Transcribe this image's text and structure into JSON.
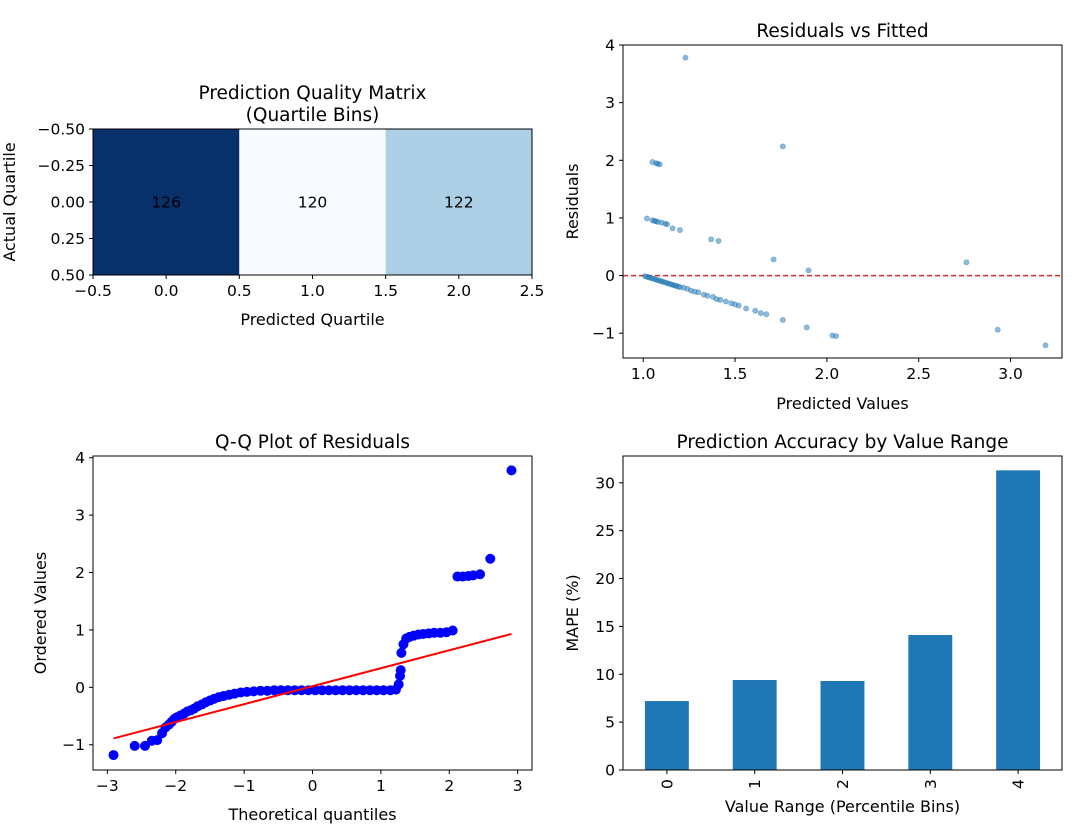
{
  "chart_data": [
    {
      "type": "heatmap",
      "title": "Prediction Quality Matrix\n(Quartile Bins)",
      "xlabel": "Predicted Quartile",
      "ylabel": "Actual Quartile",
      "xlim": [
        -0.5,
        2.5
      ],
      "ylim": [
        -0.5,
        0.5
      ],
      "y_inverted": true,
      "xticks": [
        "−0.5",
        "0.0",
        "0.5",
        "1.0",
        "1.5",
        "2.0",
        "2.5"
      ],
      "yticks": [
        "−0.50",
        "−0.25",
        "0.00",
        "0.25",
        "0.50"
      ],
      "colormap": "Blues",
      "cell_colors": [
        "#08306b",
        "#f7fbff",
        "#abd0e6"
      ],
      "cells": [
        {
          "col": 0,
          "row": 0,
          "value": 126
        },
        {
          "col": 1,
          "row": 0,
          "value": 120
        },
        {
          "col": 2,
          "row": 0,
          "value": 122
        }
      ]
    },
    {
      "type": "scatter",
      "title": "Residuals vs Fitted",
      "xlabel": "Predicted Values",
      "ylabel": "Residuals",
      "xlim": [
        0.89,
        3.28
      ],
      "ylim": [
        -1.43,
        4.0
      ],
      "xticks": [
        "1.0",
        "1.5",
        "2.0",
        "2.5",
        "3.0"
      ],
      "yticks": [
        "−1",
        "0",
        "1",
        "2",
        "3",
        "4"
      ],
      "point_color": "#1f77b4",
      "reference_line": {
        "y": 0,
        "color": "#d62728",
        "style": "dashed"
      },
      "points": [
        [
          1.23,
          3.78
        ],
        [
          1.76,
          2.24
        ],
        [
          1.05,
          1.97
        ],
        [
          1.07,
          1.95
        ],
        [
          1.08,
          1.94
        ],
        [
          1.09,
          1.93
        ],
        [
          1.02,
          0.99
        ],
        [
          1.05,
          0.96
        ],
        [
          1.06,
          0.95
        ],
        [
          1.07,
          0.94
        ],
        [
          1.08,
          0.93
        ],
        [
          1.1,
          0.92
        ],
        [
          1.12,
          0.9
        ],
        [
          1.13,
          0.89
        ],
        [
          1.16,
          0.82
        ],
        [
          1.2,
          0.79
        ],
        [
          1.37,
          0.63
        ],
        [
          1.41,
          0.6
        ],
        [
          1.71,
          0.28
        ],
        [
          1.9,
          0.09
        ],
        [
          2.76,
          0.23
        ],
        [
          1.01,
          -0.01
        ],
        [
          1.02,
          -0.02
        ],
        [
          1.03,
          -0.03
        ],
        [
          1.04,
          -0.04
        ],
        [
          1.05,
          -0.05
        ],
        [
          1.06,
          -0.06
        ],
        [
          1.07,
          -0.07
        ],
        [
          1.08,
          -0.08
        ],
        [
          1.09,
          -0.09
        ],
        [
          1.1,
          -0.1
        ],
        [
          1.11,
          -0.11
        ],
        [
          1.12,
          -0.12
        ],
        [
          1.13,
          -0.13
        ],
        [
          1.14,
          -0.14
        ],
        [
          1.15,
          -0.15
        ],
        [
          1.16,
          -0.16
        ],
        [
          1.17,
          -0.17
        ],
        [
          1.18,
          -0.18
        ],
        [
          1.19,
          -0.19
        ],
        [
          1.2,
          -0.2
        ],
        [
          1.22,
          -0.21
        ],
        [
          1.24,
          -0.23
        ],
        [
          1.26,
          -0.26
        ],
        [
          1.28,
          -0.28
        ],
        [
          1.3,
          -0.29
        ],
        [
          1.33,
          -0.33
        ],
        [
          1.35,
          -0.35
        ],
        [
          1.38,
          -0.37
        ],
        [
          1.4,
          -0.41
        ],
        [
          1.42,
          -0.42
        ],
        [
          1.45,
          -0.45
        ],
        [
          1.48,
          -0.48
        ],
        [
          1.5,
          -0.5
        ],
        [
          1.52,
          -0.52
        ],
        [
          1.56,
          -0.57
        ],
        [
          1.61,
          -0.61
        ],
        [
          1.64,
          -0.65
        ],
        [
          1.67,
          -0.67
        ],
        [
          1.76,
          -0.77
        ],
        [
          1.89,
          -0.9
        ],
        [
          2.03,
          -1.04
        ],
        [
          2.05,
          -1.05
        ],
        [
          2.93,
          -0.94
        ],
        [
          3.19,
          -1.21
        ]
      ]
    },
    {
      "type": "scatter",
      "title": "Q-Q Plot of Residuals",
      "xlabel": "Theoretical quantiles",
      "ylabel": "Ordered Values",
      "xlim": [
        -3.21,
        3.21
      ],
      "ylim": [
        -1.44,
        4.03
      ],
      "xticks": [
        "−3",
        "−2",
        "−1",
        "0",
        "1",
        "2",
        "3"
      ],
      "yticks": [
        "−1",
        "0",
        "1",
        "2",
        "3",
        "4"
      ],
      "point_color": "#0000ff",
      "fit_line": {
        "x": [
          -2.91,
          2.91
        ],
        "y": [
          -0.89,
          0.93
        ],
        "color": "#ff0000"
      },
      "points": [
        [
          -2.91,
          -1.18
        ],
        [
          -2.6,
          -1.02
        ],
        [
          -2.45,
          -1.02
        ],
        [
          -2.35,
          -0.93
        ],
        [
          -2.27,
          -0.92
        ],
        [
          -2.2,
          -0.8
        ],
        [
          -2.15,
          -0.7
        ],
        [
          -2.1,
          -0.65
        ],
        [
          -2.06,
          -0.6
        ],
        [
          -2.02,
          -0.55
        ],
        [
          -1.98,
          -0.52
        ],
        [
          -1.93,
          -0.49
        ],
        [
          -1.88,
          -0.46
        ],
        [
          -1.83,
          -0.42
        ],
        [
          -1.78,
          -0.4
        ],
        [
          -1.73,
          -0.37
        ],
        [
          -1.68,
          -0.33
        ],
        [
          -1.62,
          -0.3
        ],
        [
          -1.56,
          -0.26
        ],
        [
          -1.5,
          -0.23
        ],
        [
          -1.44,
          -0.2
        ],
        [
          -1.37,
          -0.17
        ],
        [
          -1.3,
          -0.15
        ],
        [
          -1.22,
          -0.13
        ],
        [
          -1.14,
          -0.11
        ],
        [
          -1.05,
          -0.09
        ],
        [
          -0.96,
          -0.08
        ],
        [
          -0.86,
          -0.07
        ],
        [
          -0.76,
          -0.06
        ],
        [
          -0.66,
          -0.06
        ],
        [
          -0.56,
          -0.05
        ],
        [
          -0.46,
          -0.05
        ],
        [
          -0.36,
          -0.05
        ],
        [
          -0.26,
          -0.05
        ],
        [
          -0.16,
          -0.05
        ],
        [
          -0.06,
          -0.05
        ],
        [
          0.04,
          -0.05
        ],
        [
          0.14,
          -0.05
        ],
        [
          0.24,
          -0.05
        ],
        [
          0.34,
          -0.05
        ],
        [
          0.44,
          -0.05
        ],
        [
          0.54,
          -0.05
        ],
        [
          0.64,
          -0.05
        ],
        [
          0.74,
          -0.05
        ],
        [
          0.84,
          -0.05
        ],
        [
          0.94,
          -0.05
        ],
        [
          1.04,
          -0.05
        ],
        [
          1.14,
          -0.05
        ],
        [
          1.22,
          -0.04
        ],
        [
          1.26,
          0.05
        ],
        [
          1.28,
          0.2
        ],
        [
          1.29,
          0.3
        ],
        [
          1.3,
          0.6
        ],
        [
          1.33,
          0.75
        ],
        [
          1.37,
          0.85
        ],
        [
          1.42,
          0.88
        ],
        [
          1.48,
          0.9
        ],
        [
          1.55,
          0.92
        ],
        [
          1.62,
          0.93
        ],
        [
          1.7,
          0.94
        ],
        [
          1.78,
          0.95
        ],
        [
          1.87,
          0.95
        ],
        [
          1.96,
          0.96
        ],
        [
          2.05,
          0.99
        ],
        [
          2.12,
          1.93
        ],
        [
          2.2,
          1.93
        ],
        [
          2.28,
          1.94
        ],
        [
          2.35,
          1.95
        ],
        [
          2.45,
          1.97
        ],
        [
          2.6,
          2.24
        ],
        [
          2.91,
          3.78
        ]
      ]
    },
    {
      "type": "bar",
      "title": "Prediction Accuracy by Value Range",
      "xlabel": "Value Range (Percentile Bins)",
      "ylabel": "MAPE (%)",
      "categories": [
        "0",
        "1",
        "2",
        "3",
        "4"
      ],
      "values": [
        7.2,
        9.4,
        9.3,
        14.1,
        31.3
      ],
      "ylim": [
        0,
        32.8
      ],
      "yticks": [
        "0",
        "5",
        "10",
        "15",
        "20",
        "25",
        "30"
      ],
      "bar_color": "#1f77b4"
    }
  ]
}
